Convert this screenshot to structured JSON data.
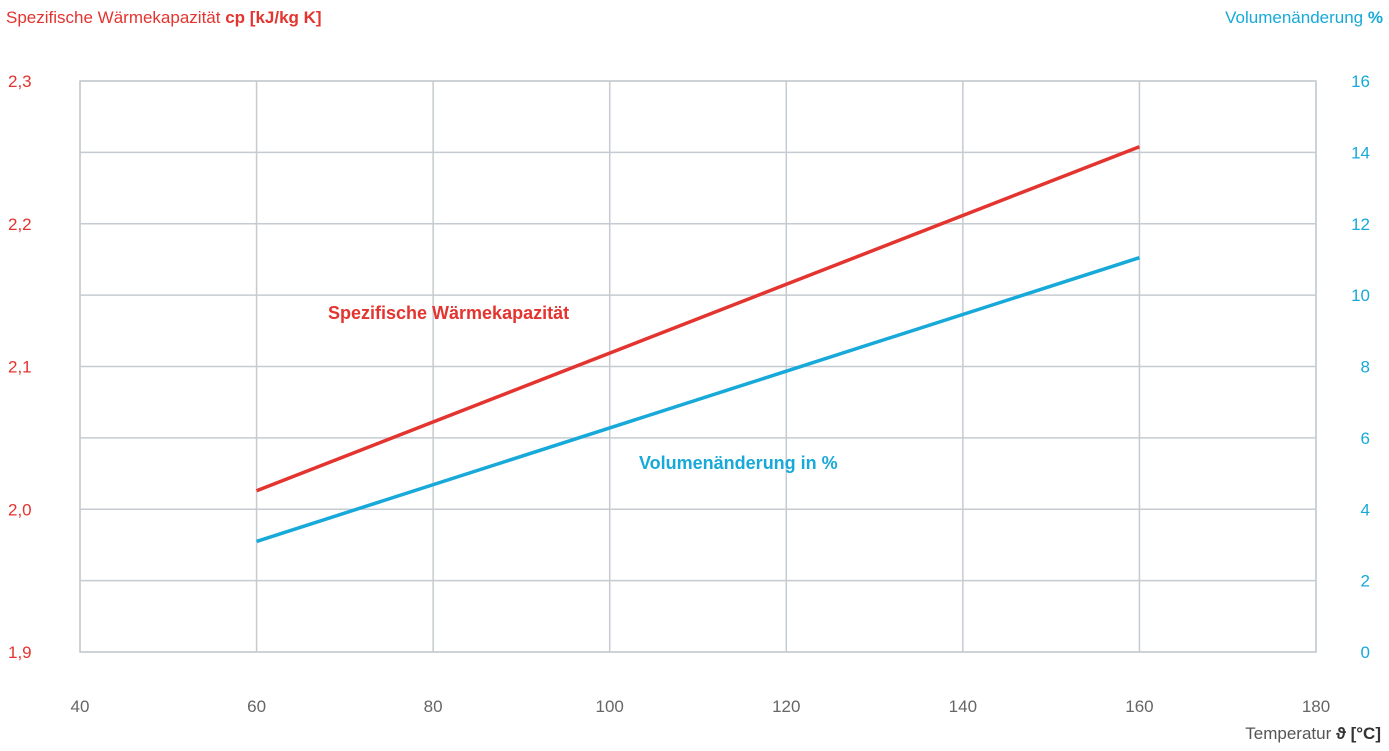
{
  "chart_data": {
    "type": "line",
    "y_left": {
      "label": "Spezifische Wärmekapazität",
      "unit": "cp [kJ/kg K]",
      "range": [
        1.9,
        2.3
      ],
      "ticks": [
        "1,9",
        "2,0",
        "2,1",
        "2,2",
        "2,3"
      ],
      "tick_values": [
        1.9,
        2.0,
        2.1,
        2.2,
        2.3
      ],
      "color": "#e3342f"
    },
    "y_right": {
      "label": "Volumenänderung",
      "unit": "%",
      "range": [
        0,
        16
      ],
      "ticks": [
        "0",
        "2",
        "4",
        "6",
        "8",
        "10",
        "12",
        "14",
        "16"
      ],
      "tick_values": [
        0,
        2,
        4,
        6,
        8,
        10,
        12,
        14,
        16
      ],
      "color": "#17a9d9"
    },
    "x_axis": {
      "label": "Temperatur",
      "unit": "ϑ [°C]",
      "range": [
        40,
        180
      ],
      "ticks": [
        "40",
        "60",
        "80",
        "100",
        "120",
        "140",
        "160",
        "180"
      ],
      "tick_values": [
        40,
        60,
        80,
        100,
        120,
        140,
        160,
        180
      ]
    },
    "grid": true,
    "series": [
      {
        "name": "Spezifische Wärmekapazität",
        "axis": "left",
        "color": "#e3342f",
        "x": [
          60,
          160
        ],
        "y": [
          2.013,
          2.254
        ]
      },
      {
        "name": "Volumenänderung in %",
        "axis": "right",
        "color": "#17a9d9",
        "x": [
          60,
          160
        ],
        "y": [
          3.1,
          11.05
        ]
      }
    ]
  }
}
